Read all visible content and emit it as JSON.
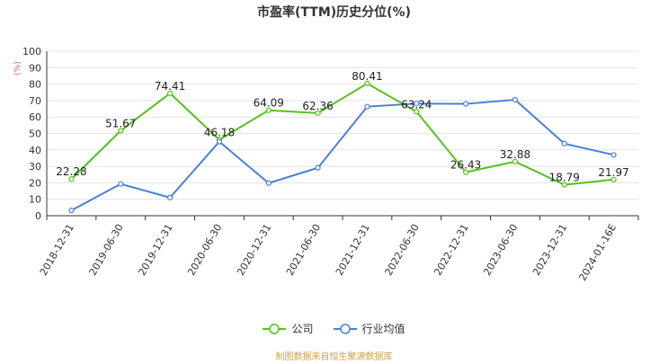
{
  "chart_data": {
    "type": "line",
    "title": "市盈率(TTM)历史分位(%)",
    "ylabel": "(%)",
    "ylim": [
      0,
      100
    ],
    "yticks": [
      0,
      10,
      20,
      30,
      40,
      50,
      60,
      70,
      80,
      90,
      100
    ],
    "categories": [
      "2018-12-31",
      "2019-06-30",
      "2019-12-31",
      "2020-06-30",
      "2020-12-31",
      "2021-06-30",
      "2021-12-31",
      "2022-06-30",
      "2022-12-31",
      "2023-06-30",
      "2023-12-31",
      "2024-01-16E"
    ],
    "grid": true,
    "legend_position": "bottom",
    "series": [
      {
        "name": "公司",
        "color": "#52c41a",
        "values": [
          22.28,
          51.67,
          74.41,
          46.18,
          64.09,
          62.36,
          80.41,
          63.24,
          26.43,
          32.88,
          18.79,
          21.97
        ],
        "labels": [
          "22.28",
          "51.67",
          "74.41",
          "46.18",
          "64.09",
          "62.36",
          "80.41",
          "63.24",
          "26.43",
          "32.88",
          "18.79",
          "21.97"
        ]
      },
      {
        "name": "行业均值",
        "color": "#4a7fdc",
        "values": [
          3.2,
          19.3,
          11.0,
          45.0,
          19.8,
          29.1,
          66.3,
          68.2,
          68.0,
          70.5,
          43.8,
          37.0
        ]
      }
    ]
  },
  "footer": {
    "source": "制图数据来自恒生聚源数据库"
  }
}
